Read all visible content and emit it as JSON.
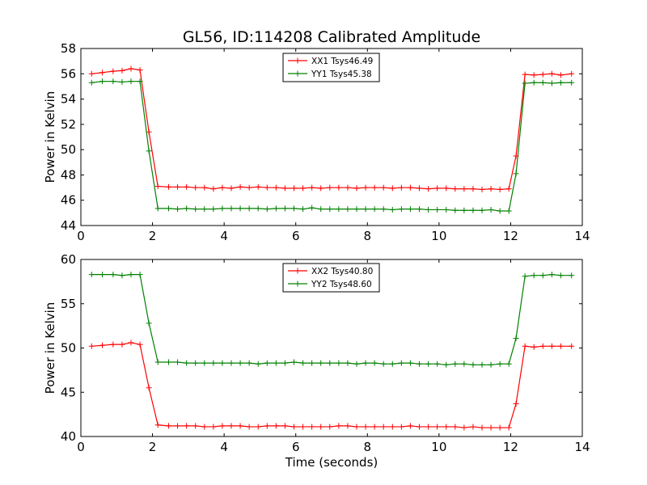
{
  "chart_data": [
    {
      "type": "line",
      "title": "GL56, ID:114208 Calibrated Amplitude",
      "xlabel": "",
      "ylabel": "Power in Kelvin",
      "xlim": [
        0,
        14
      ],
      "ylim": [
        44,
        58
      ],
      "xticks": [
        "0",
        "2",
        "4",
        "6",
        "8",
        "10",
        "12",
        "14"
      ],
      "yticks": [
        "44",
        "46",
        "48",
        "50",
        "52",
        "54",
        "56",
        "58"
      ],
      "legend_position": "top-center",
      "x": [
        0.3,
        0.6,
        0.9,
        1.15,
        1.4,
        1.65,
        1.9,
        2.15,
        2.45,
        2.7,
        2.95,
        3.2,
        3.45,
        3.7,
        3.95,
        4.2,
        4.45,
        4.7,
        4.95,
        5.2,
        5.45,
        5.7,
        5.95,
        6.2,
        6.45,
        6.7,
        6.95,
        7.2,
        7.45,
        7.7,
        7.95,
        8.2,
        8.45,
        8.7,
        8.95,
        9.2,
        9.45,
        9.7,
        9.95,
        10.2,
        10.45,
        10.7,
        10.95,
        11.2,
        11.45,
        11.7,
        11.95,
        12.15,
        12.4,
        12.65,
        12.9,
        13.15,
        13.4,
        13.7
      ],
      "series": [
        {
          "name": "XX1 Tsys46.49",
          "color": "#ff0000",
          "values": [
            56.0,
            56.1,
            56.2,
            56.25,
            56.4,
            56.3,
            51.4,
            47.1,
            47.05,
            47.05,
            47.05,
            47.0,
            47.0,
            46.9,
            47.0,
            46.95,
            47.05,
            47.0,
            47.05,
            47.0,
            47.0,
            46.95,
            46.95,
            46.95,
            47.0,
            46.95,
            47.0,
            47.0,
            47.0,
            46.95,
            47.0,
            47.0,
            47.0,
            46.95,
            47.0,
            47.0,
            46.95,
            46.9,
            46.95,
            46.95,
            46.9,
            46.9,
            46.9,
            46.85,
            46.9,
            46.85,
            46.9,
            49.5,
            55.95,
            55.9,
            55.95,
            56.0,
            55.9,
            56.0
          ]
        },
        {
          "name": "YY1 Tsys45.38",
          "color": "#008000",
          "values": [
            55.3,
            55.4,
            55.4,
            55.35,
            55.4,
            55.4,
            49.9,
            45.35,
            45.35,
            45.3,
            45.35,
            45.3,
            45.3,
            45.3,
            45.35,
            45.35,
            45.35,
            45.35,
            45.35,
            45.3,
            45.35,
            45.35,
            45.35,
            45.3,
            45.4,
            45.3,
            45.3,
            45.3,
            45.3,
            45.3,
            45.3,
            45.3,
            45.3,
            45.25,
            45.3,
            45.3,
            45.3,
            45.25,
            45.25,
            45.25,
            45.2,
            45.2,
            45.2,
            45.2,
            45.25,
            45.15,
            45.15,
            48.1,
            55.25,
            55.3,
            55.3,
            55.25,
            55.3,
            55.3
          ]
        }
      ]
    },
    {
      "type": "line",
      "title": "",
      "xlabel": "Time (seconds)",
      "ylabel": "Power in Kelvin",
      "xlim": [
        0,
        14
      ],
      "ylim": [
        40,
        60
      ],
      "xticks": [
        "0",
        "2",
        "4",
        "6",
        "8",
        "10",
        "12",
        "14"
      ],
      "yticks": [
        "40",
        "45",
        "50",
        "55",
        "60"
      ],
      "legend_position": "top-center",
      "x": [
        0.3,
        0.6,
        0.9,
        1.15,
        1.4,
        1.65,
        1.9,
        2.15,
        2.45,
        2.7,
        2.95,
        3.2,
        3.45,
        3.7,
        3.95,
        4.2,
        4.45,
        4.7,
        4.95,
        5.2,
        5.45,
        5.7,
        5.95,
        6.2,
        6.45,
        6.7,
        6.95,
        7.2,
        7.45,
        7.7,
        7.95,
        8.2,
        8.45,
        8.7,
        8.95,
        9.2,
        9.45,
        9.7,
        9.95,
        10.2,
        10.45,
        10.7,
        10.95,
        11.2,
        11.45,
        11.7,
        11.95,
        12.15,
        12.4,
        12.65,
        12.9,
        13.15,
        13.4,
        13.7
      ],
      "series": [
        {
          "name": "XX2 Tsys40.80",
          "color": "#ff0000",
          "values": [
            50.2,
            50.3,
            50.4,
            50.4,
            50.6,
            50.4,
            45.5,
            41.3,
            41.2,
            41.2,
            41.2,
            41.2,
            41.1,
            41.1,
            41.2,
            41.2,
            41.2,
            41.1,
            41.1,
            41.2,
            41.2,
            41.2,
            41.1,
            41.1,
            41.1,
            41.1,
            41.1,
            41.2,
            41.2,
            41.1,
            41.1,
            41.1,
            41.1,
            41.1,
            41.1,
            41.2,
            41.1,
            41.1,
            41.1,
            41.1,
            41.1,
            41.0,
            41.1,
            41.0,
            41.0,
            41.0,
            41.0,
            43.7,
            50.2,
            50.1,
            50.2,
            50.2,
            50.2,
            50.2
          ]
        },
        {
          "name": "YY2 Tsys48.60",
          "color": "#008000",
          "values": [
            58.3,
            58.3,
            58.3,
            58.2,
            58.3,
            58.3,
            52.8,
            48.4,
            48.4,
            48.4,
            48.3,
            48.3,
            48.3,
            48.3,
            48.3,
            48.3,
            48.3,
            48.3,
            48.2,
            48.3,
            48.3,
            48.3,
            48.4,
            48.3,
            48.3,
            48.3,
            48.3,
            48.3,
            48.3,
            48.2,
            48.3,
            48.3,
            48.2,
            48.2,
            48.3,
            48.3,
            48.2,
            48.2,
            48.2,
            48.1,
            48.2,
            48.2,
            48.1,
            48.1,
            48.1,
            48.2,
            48.2,
            51.1,
            58.1,
            58.2,
            58.2,
            58.3,
            58.2,
            58.2
          ]
        }
      ]
    }
  ]
}
